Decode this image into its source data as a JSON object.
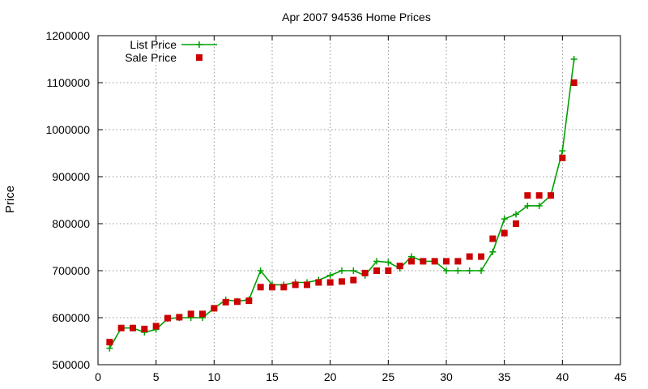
{
  "chart_data": {
    "type": "line",
    "title": "Apr 2007 94536 Home Prices",
    "xlabel": "",
    "ylabel": "Price",
    "xlim": [
      0,
      45
    ],
    "ylim": [
      500000,
      1200000
    ],
    "x_ticks": [
      0,
      5,
      10,
      15,
      20,
      25,
      30,
      35,
      40,
      45
    ],
    "y_ticks": [
      500000,
      600000,
      700000,
      800000,
      900000,
      1000000,
      1100000,
      1200000
    ],
    "x_tick_labels": [
      "0",
      "5",
      "10",
      "15",
      "20",
      "25",
      "30",
      "35",
      "40",
      "45"
    ],
    "y_tick_labels": [
      "500000",
      "600000",
      "700000",
      "800000",
      "900000",
      "1000000",
      "1100000",
      "1200000"
    ],
    "grid": true,
    "legend_position": "top-left",
    "series": [
      {
        "name": "List Price",
        "style": "line-with-plus-markers",
        "color": "#00a000",
        "x": [
          1,
          2,
          3,
          4,
          5,
          6,
          7,
          8,
          9,
          10,
          11,
          12,
          13,
          14,
          15,
          16,
          17,
          18,
          19,
          20,
          21,
          22,
          23,
          24,
          25,
          26,
          27,
          28,
          29,
          30,
          31,
          32,
          33,
          34,
          35,
          36,
          37,
          38,
          39,
          40,
          41
        ],
        "y": [
          535000,
          578000,
          578000,
          569000,
          575000,
          598000,
          600000,
          600000,
          600000,
          620000,
          638000,
          635000,
          638000,
          700000,
          670000,
          670000,
          675000,
          675000,
          680000,
          690000,
          700000,
          700000,
          690000,
          720000,
          718000,
          705000,
          730000,
          720000,
          720000,
          700000,
          700000,
          700000,
          700000,
          740000,
          810000,
          820000,
          838000,
          838000,
          860000,
          955000,
          1150000
        ]
      },
      {
        "name": "Sale Price",
        "style": "square-markers",
        "color": "#cc0000",
        "x": [
          1,
          2,
          3,
          4,
          5,
          6,
          7,
          8,
          9,
          10,
          11,
          12,
          13,
          14,
          15,
          16,
          17,
          18,
          19,
          20,
          21,
          22,
          23,
          24,
          25,
          26,
          27,
          28,
          29,
          30,
          31,
          32,
          33,
          34,
          35,
          36,
          37,
          38,
          39,
          40,
          41
        ],
        "y": [
          548000,
          578000,
          578000,
          576000,
          582000,
          599000,
          601000,
          608000,
          608000,
          620000,
          633000,
          634000,
          636000,
          665000,
          665000,
          665000,
          670000,
          670000,
          675000,
          675000,
          677000,
          680000,
          695000,
          700000,
          700000,
          710000,
          720000,
          720000,
          720000,
          720000,
          720000,
          730000,
          730000,
          768000,
          780000,
          800000,
          860000,
          860000,
          860000,
          940000,
          1100000
        ]
      }
    ]
  }
}
